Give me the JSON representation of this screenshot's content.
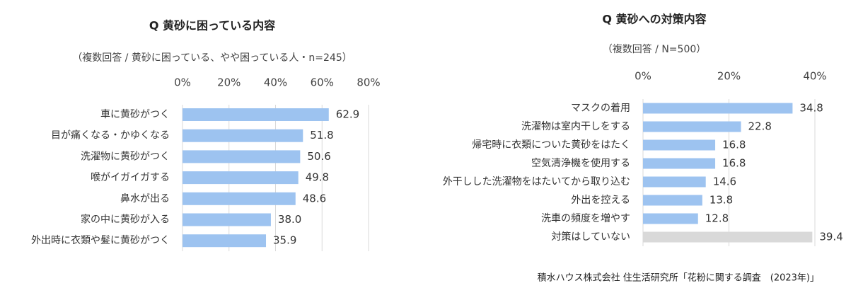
{
  "chart_data": [
    {
      "type": "bar",
      "orientation": "horizontal",
      "title": "Q 黄砂に困っている内容",
      "subtitle": "（複数回答 / 黄砂に困っている、やや困っている人・n=245）",
      "categories": [
        "車に黄砂がつく",
        "目が痛くなる・かゆくなる",
        "洗濯物に黄砂がつく",
        "喉がイガイガする",
        "鼻水が出る",
        "家の中に黄砂が入る",
        "外出時に衣類や髪に黄砂がつく"
      ],
      "values": [
        62.9,
        51.8,
        50.6,
        49.8,
        48.6,
        38.0,
        35.9
      ],
      "value_labels": [
        "62.9",
        "51.8",
        "50.6",
        "49.8",
        "48.6",
        "38.0",
        "35.9"
      ],
      "colors": [
        "#9dc3f0",
        "#9dc3f0",
        "#9dc3f0",
        "#9dc3f0",
        "#9dc3f0",
        "#9dc3f0",
        "#9dc3f0"
      ],
      "xlim": [
        0,
        80
      ],
      "xticks": [
        {
          "value": 0,
          "label": "0%"
        },
        {
          "value": 20,
          "label": "20%"
        },
        {
          "value": 40,
          "label": "40%"
        },
        {
          "value": 60,
          "label": "60%"
        },
        {
          "value": 80,
          "label": "80%"
        }
      ],
      "grid": true
    },
    {
      "type": "bar",
      "orientation": "horizontal",
      "title": "Q 黄砂への対策内容",
      "subtitle": "（複数回答 / N=500）",
      "categories": [
        "マスクの着用",
        "洗濯物は室内干しをする",
        "帰宅時に衣類についた黄砂をはたく",
        "空気清浄機を使用する",
        "外干しした洗濯物をはたいてから取り込む",
        "外出を控える",
        "洗車の頻度を増やす",
        "対策はしていない"
      ],
      "values": [
        34.8,
        22.8,
        16.8,
        16.8,
        14.6,
        13.8,
        12.8,
        39.4
      ],
      "value_labels": [
        "34.8",
        "22.8",
        "16.8",
        "16.8",
        "14.6",
        "13.8",
        "12.8",
        "39.4"
      ],
      "colors": [
        "#9dc3f0",
        "#9dc3f0",
        "#9dc3f0",
        "#9dc3f0",
        "#9dc3f0",
        "#9dc3f0",
        "#9dc3f0",
        "#d9d9d9"
      ],
      "xlim": [
        0,
        40
      ],
      "xticks": [
        {
          "value": 0,
          "label": "0%"
        },
        {
          "value": 20,
          "label": "20%"
        },
        {
          "value": 40,
          "label": "40%"
        }
      ],
      "grid": true
    }
  ],
  "source": "積水ハウス株式会社 住生活研究所「花粉に関する調査　(2023年)」"
}
